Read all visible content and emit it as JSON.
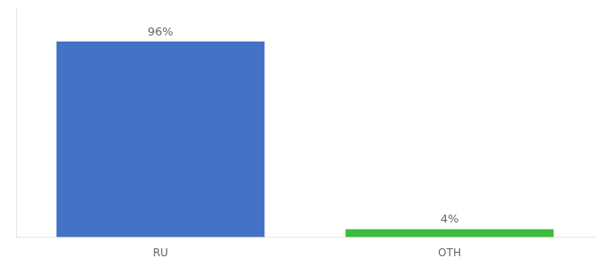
{
  "chart_data": {
    "type": "bar",
    "categories": [
      "RU",
      "OTH"
    ],
    "values": [
      96,
      4
    ],
    "value_labels": [
      "96%",
      "4%"
    ],
    "colors": [
      "#4472c4",
      "#3dbb3d"
    ],
    "ylim": [
      0,
      112
    ],
    "grid": false,
    "tick_labels": "x",
    "data_labels": true
  }
}
